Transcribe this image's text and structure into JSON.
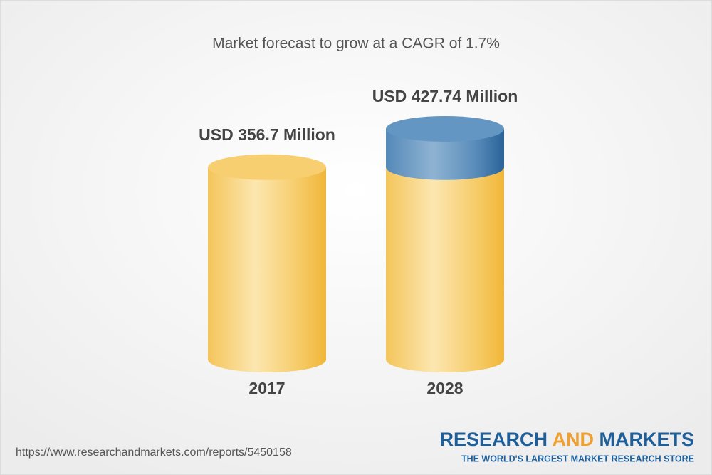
{
  "chart_data": {
    "type": "cylinder",
    "title": "Market forecast to grow at a CAGR of 1.7%",
    "categories": [
      "2017",
      "2028"
    ],
    "values": [
      356.7,
      427.74
    ],
    "value_labels": [
      "USD 356.7 Million",
      "USD 427.74 Million"
    ],
    "color": "#f4bf48",
    "growth_color": "#4f86b8"
  },
  "footer": {
    "url": "https://www.researchandmarkets.com/reports/5450158",
    "logo": {
      "part1": "RESEARCH",
      "part2": "AND",
      "part3": "MARKETS",
      "tagline": "THE WORLD'S LARGEST MARKET RESEARCH STORE"
    }
  }
}
